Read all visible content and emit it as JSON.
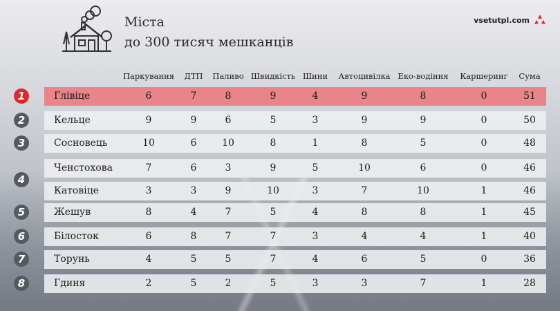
{
  "title": {
    "line1": "Міста",
    "line2": "до 300 тисяч мешканців"
  },
  "brand": {
    "text": "vsetutpl.com",
    "color": "#e4262f"
  },
  "columns": [
    "Паркування",
    "ДТП",
    "Паливо",
    "Швидкість",
    "Шини",
    "Автоцивілка",
    "Еко-водіння",
    "Каршеринг",
    "Сума"
  ],
  "colors": {
    "highlight_row": "#e8848a",
    "first_rank": "#e4262f",
    "rank_badge": "#555a60"
  },
  "rows": [
    {
      "rank": "1",
      "city": "Глівіце",
      "values": [
        "6",
        "7",
        "8",
        "9",
        "4",
        "9",
        "8",
        "0",
        "51"
      ]
    },
    {
      "rank": "2",
      "city": "Кельце",
      "values": [
        "9",
        "9",
        "6",
        "5",
        "3",
        "9",
        "9",
        "0",
        "50"
      ]
    },
    {
      "rank": "3",
      "city": "Сосновець",
      "values": [
        "10",
        "6",
        "10",
        "8",
        "1",
        "8",
        "5",
        "0",
        "48"
      ]
    },
    {
      "rank": "4",
      "city": "Ченстохова",
      "values": [
        "7",
        "6",
        "3",
        "9",
        "5",
        "10",
        "6",
        "0",
        "46"
      ]
    },
    {
      "rank": "",
      "city": "Катовіце",
      "values": [
        "3",
        "3",
        "9",
        "10",
        "3",
        "7",
        "10",
        "1",
        "46"
      ]
    },
    {
      "rank": "5",
      "city": "Жешув",
      "values": [
        "8",
        "4",
        "7",
        "5",
        "4",
        "8",
        "8",
        "1",
        "45"
      ]
    },
    {
      "rank": "6",
      "city": "Білосток",
      "values": [
        "6",
        "8",
        "7",
        "7",
        "3",
        "4",
        "4",
        "1",
        "40"
      ]
    },
    {
      "rank": "7",
      "city": "Торунь",
      "values": [
        "4",
        "5",
        "5",
        "7",
        "4",
        "6",
        "5",
        "0",
        "36"
      ]
    },
    {
      "rank": "8",
      "city": "Гдиня",
      "values": [
        "2",
        "5",
        "2",
        "5",
        "3",
        "3",
        "7",
        "1",
        "28"
      ]
    }
  ]
}
